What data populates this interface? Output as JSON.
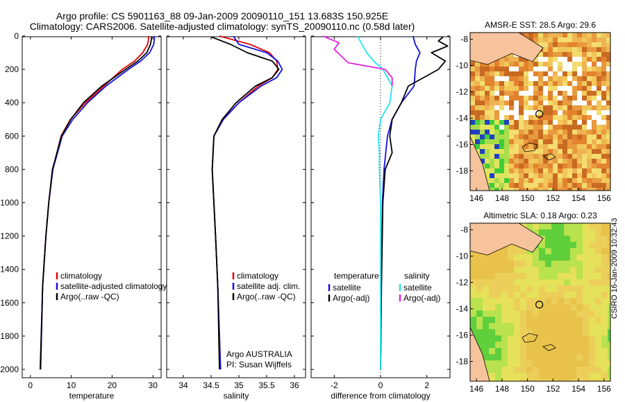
{
  "header": {
    "line1": "Argo profile: CS 5901163_88 09-Jan-2009 20090110_151 13.683S 150.925E",
    "line2": "Climatology: CARS2006. Satellite-adjusted climatology: synTS_20090110.nc (0.58d later)"
  },
  "credit": "CSIRO 16-Jan-2009 10:32:43",
  "colors": {
    "red": "#e00000",
    "blue": "#1010e0",
    "black": "#000000",
    "cyan": "#22e6f0",
    "magenta": "#e020e0"
  },
  "chart_data": [
    {
      "type": "line",
      "name": "temperature-panel",
      "xlabel": "temperature",
      "ylabel": "",
      "xlim": [
        -2,
        32
      ],
      "ylim": [
        2050,
        0
      ],
      "xticks": [
        0,
        10,
        20,
        30
      ],
      "yticks": [
        0,
        200,
        400,
        600,
        800,
        1000,
        1200,
        1400,
        1600,
        1800,
        2000
      ],
      "legend": [
        "climatology",
        "satellite-adjusted climatology",
        "Argo(..raw -QC)"
      ],
      "series": [
        {
          "name": "climatology",
          "color": "red",
          "depth": [
            0,
            50,
            100,
            150,
            200,
            300,
            400,
            500,
            600,
            800,
            1000,
            1200,
            1500,
            2000
          ],
          "values": [
            29,
            28.7,
            27.5,
            25.5,
            22.5,
            18,
            13.5,
            9.8,
            7.5,
            5.5,
            4.5,
            3.8,
            3.0,
            2.5
          ]
        },
        {
          "name": "satellite-adjusted climatology",
          "color": "blue",
          "depth": [
            0,
            50,
            100,
            150,
            200,
            300,
            400,
            500,
            600,
            800,
            1000,
            1200,
            1500,
            2000
          ],
          "values": [
            30.4,
            30.2,
            29.2,
            27.0,
            24.0,
            18.5,
            14.0,
            10.4,
            7.8,
            5.5,
            4.5,
            3.8,
            3.0,
            2.5
          ]
        },
        {
          "name": "Argo(..raw -QC)",
          "color": "black",
          "depth": [
            5,
            50,
            100,
            150,
            200,
            300,
            400,
            500,
            600,
            800,
            1000,
            1200,
            1500,
            2000
          ],
          "values": [
            29.7,
            29.4,
            28.5,
            26.3,
            23.3,
            17.5,
            13.0,
            9.9,
            7.6,
            5.4,
            4.5,
            3.8,
            3.0,
            2.4
          ]
        }
      ]
    },
    {
      "type": "line",
      "name": "salinity-panel",
      "xlabel": "salinity",
      "ylabel": "",
      "xlim": [
        33.7,
        36.2
      ],
      "ylim": [
        2050,
        0
      ],
      "xticks": [
        34,
        34.5,
        35,
        35.5,
        36
      ],
      "yticks": [
        0,
        200,
        400,
        600,
        800,
        1000,
        1200,
        1400,
        1600,
        1800,
        2000
      ],
      "legend": [
        "climatology",
        "satellite adj. clim.",
        "Argo(..raw -QC)"
      ],
      "annotation": [
        "Argo AUSTRALIA",
        "PI: Susan Wijffels"
      ],
      "series": [
        {
          "name": "climatology",
          "color": "red",
          "depth": [
            0,
            50,
            100,
            150,
            200,
            250,
            300,
            400,
            500,
            600,
            800,
            1000,
            1200,
            1500,
            2000
          ],
          "values": [
            34.65,
            35.2,
            35.55,
            35.68,
            35.7,
            35.6,
            35.35,
            35.0,
            34.72,
            34.55,
            34.52,
            34.55,
            34.58,
            34.62,
            34.67
          ]
        },
        {
          "name": "satellite adj. clim.",
          "color": "blue",
          "depth": [
            0,
            50,
            100,
            150,
            200,
            250,
            300,
            400,
            500,
            600,
            800,
            1000,
            1200,
            1500,
            2000
          ],
          "values": [
            34.9,
            35.0,
            35.5,
            35.7,
            35.78,
            35.68,
            35.4,
            35.0,
            34.72,
            34.55,
            34.52,
            34.55,
            34.58,
            34.62,
            34.67
          ]
        },
        {
          "name": "Argo(..raw -QC)",
          "color": "black",
          "depth": [
            5,
            50,
            100,
            150,
            200,
            250,
            300,
            400,
            500,
            600,
            800,
            1000,
            1200,
            1500,
            2000
          ],
          "values": [
            34.5,
            34.85,
            35.15,
            35.6,
            35.72,
            35.6,
            35.3,
            34.95,
            34.7,
            34.55,
            34.52,
            34.55,
            34.58,
            34.62,
            34.65
          ]
        }
      ]
    },
    {
      "type": "line",
      "name": "difference-panel",
      "xlabel": "difference from climatology",
      "ylabel": "",
      "xlim": [
        -3,
        3
      ],
      "ylim": [
        2050,
        0
      ],
      "xticks": [
        -2,
        0,
        2
      ],
      "yticks": [
        0,
        200,
        400,
        600,
        800,
        1000,
        1200,
        1400,
        1600,
        1800,
        2000
      ],
      "legend_temperature": {
        "heading": "temperature",
        "items": [
          "satellite",
          "Argo(-adj)"
        ]
      },
      "legend_salinity": {
        "heading": "salinity",
        "items": [
          "satellite",
          "Argo(-adj)"
        ]
      },
      "series": [
        {
          "name": "temperature satellite",
          "color": "blue",
          "depth": [
            0,
            50,
            100,
            150,
            200,
            300,
            400,
            500,
            600,
            800,
            1000,
            1500,
            2000
          ],
          "values": [
            1.4,
            1.5,
            1.7,
            1.55,
            1.5,
            1.45,
            0.9,
            0.5,
            0.3,
            0.15,
            0.08,
            0.03,
            0.0
          ]
        },
        {
          "name": "temperature Argo(-adj)",
          "color": "black",
          "depth": [
            5,
            30,
            60,
            100,
            150,
            200,
            300,
            400,
            500,
            600,
            700,
            800,
            1000,
            1500,
            2000
          ],
          "values": [
            2.7,
            2.5,
            2.9,
            2.2,
            2.8,
            2.5,
            1.2,
            0.9,
            0.5,
            0.4,
            0.5,
            0.2,
            0.1,
            0.04,
            0.0
          ]
        },
        {
          "name": "salinity satellite",
          "color": "cyan",
          "depth": [
            0,
            50,
            100,
            150,
            200,
            300,
            400,
            500,
            600,
            700,
            800,
            1000,
            1500,
            2000
          ],
          "values": [
            -1.0,
            -0.8,
            -0.6,
            -0.3,
            0.1,
            0.5,
            0.4,
            0.0,
            -0.1,
            -0.05,
            -0.05,
            0.0,
            0.0,
            0.0
          ]
        },
        {
          "name": "salinity Argo(-adj)",
          "color": "magenta",
          "depth": [
            0,
            40,
            80,
            120,
            160,
            200,
            250,
            300
          ],
          "values": [
            -2.5,
            -1.8,
            -2.0,
            -1.7,
            -1.4,
            0.2,
            0.5,
            0.5
          ]
        }
      ]
    },
    {
      "type": "heatmap",
      "name": "sst-map",
      "title": "AMSR-E SST: 28.5  Argo: 29.6",
      "xticks": [
        146,
        148,
        150,
        152,
        154,
        156
      ],
      "yticks": [
        -8,
        -10,
        -12,
        -14,
        -16,
        -18
      ],
      "xlim": [
        145.5,
        156.5
      ],
      "ylim": [
        -19.5,
        -7.5
      ],
      "profile_lon": 150.925,
      "profile_lat": -13.683
    },
    {
      "type": "heatmap",
      "name": "sla-map",
      "title": "Altimetric SLA: 0.18  Argo: 0.23",
      "xticks": [
        146,
        148,
        150,
        152,
        154,
        156
      ],
      "yticks": [
        -8,
        -10,
        -12,
        -14,
        -16,
        -18
      ],
      "xlim": [
        145.5,
        156.5
      ],
      "ylim": [
        -19.5,
        -7.5
      ],
      "profile_lon": 150.925,
      "profile_lat": -13.683
    }
  ]
}
